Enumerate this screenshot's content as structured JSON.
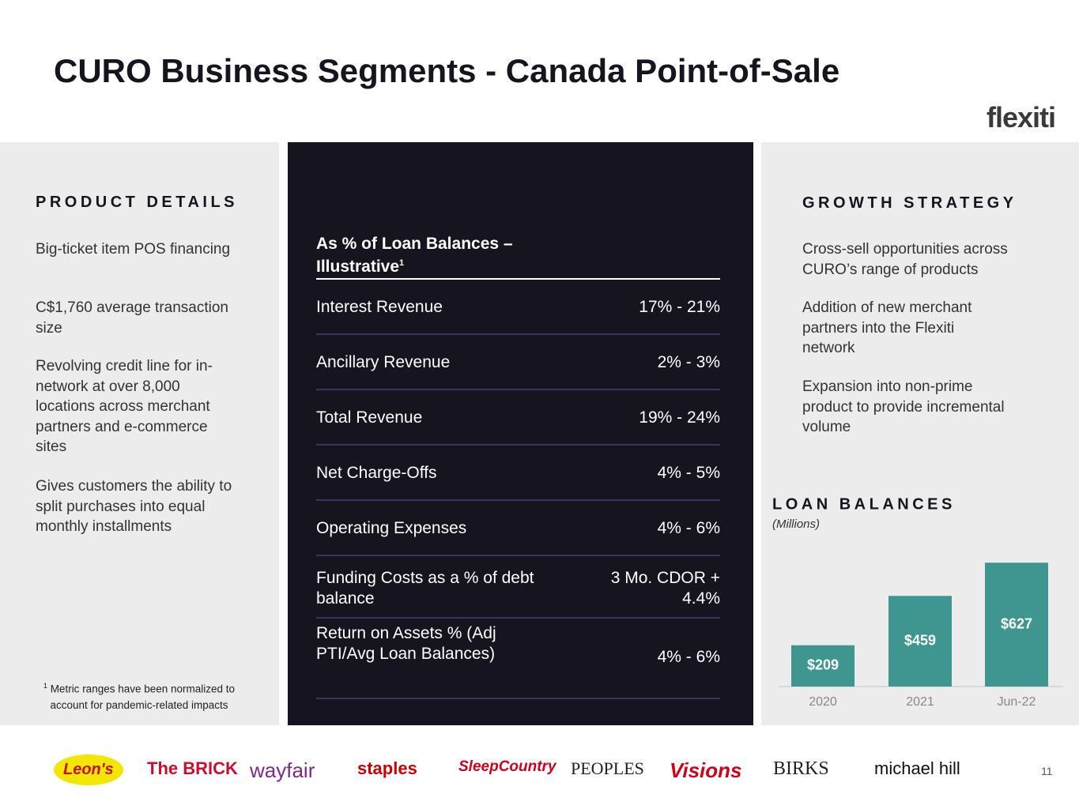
{
  "header": {
    "title": "CURO Business Segments - Canada Point-of-Sale",
    "brand": "flexiti"
  },
  "product_details": {
    "heading": "PRODUCT DETAILS",
    "items": [
      "Big-ticket item POS financing",
      "C$1,760 average transaction size",
      "Revolving credit line for in-network at over 8,000 locations across merchant partners and e-commerce sites",
      "Gives customers the ability to split purchases into equal monthly installments"
    ],
    "footnote_marker": "1",
    "footnote": "Metric ranges have been normalized to account for pandemic-related impacts"
  },
  "table": {
    "header": "As % of Loan Balances – Illustrative",
    "header_marker": "1",
    "rows": [
      [
        "Interest Revenue",
        "17% - 21%"
      ],
      [
        "Ancillary Revenue",
        "2% - 3%"
      ],
      [
        "Total Revenue",
        "19% - 24%"
      ],
      [
        "Net Charge-Offs",
        "4% - 5%"
      ],
      [
        "Operating Expenses",
        "4% - 6%"
      ],
      [
        "Funding Costs as a % of debt balance",
        "3 Mo. CDOR + 4.4%"
      ],
      [
        "Return on Assets % (Adj PTI/Avg Loan Balances)",
        "4% - 6%"
      ]
    ]
  },
  "growth_strategy": {
    "heading": "GROWTH STRATEGY",
    "items": [
      "Cross-sell opportunities across CURO’s range of products",
      "Addition of new merchant partners into the Flexiti network",
      "Expansion into non-prime product to provide incremental volume"
    ]
  },
  "chart_data": {
    "type": "bar",
    "title": "LOAN BALANCES",
    "subtitle": "(Millions)",
    "categories": [
      "2020",
      "2021",
      "Jun-22"
    ],
    "values": [
      209,
      459,
      627
    ],
    "value_labels": [
      "$209",
      "$459",
      "$627"
    ],
    "color": "#3f9690"
  },
  "logos": [
    "Leon's",
    "The BRICK",
    "wayfair",
    "staples",
    "SleepCountry",
    "PEOPLES",
    "Visions",
    "BIRKS",
    "michael hill"
  ],
  "page_number": "11"
}
